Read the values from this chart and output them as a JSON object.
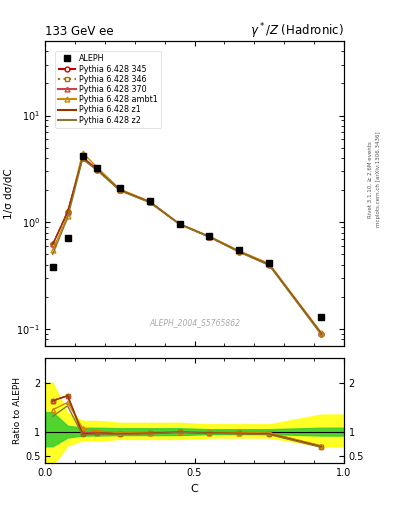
{
  "title_left": "133 GeV ee",
  "title_right": "γ*/Z (Hadronic)",
  "ylabel_main": "1/σ dσ/dC",
  "ylabel_ratio": "Ratio to ALEPH",
  "xlabel": "C",
  "watermark": "ALEPH_2004_S5765862",
  "right_label_top": "Rivet 3.1.10, ≥ 2.6M events",
  "right_label_bot": "mcplots.cern.ch [arXiv:1306.3436]",
  "aleph_x": [
    0.025,
    0.075,
    0.125,
    0.175,
    0.25,
    0.35,
    0.45,
    0.55,
    0.65,
    0.75,
    0.925
  ],
  "aleph_y": [
    0.38,
    0.72,
    4.2,
    3.2,
    2.1,
    1.6,
    0.97,
    0.75,
    0.55,
    0.42,
    0.13
  ],
  "py_x": [
    0.025,
    0.075,
    0.125,
    0.175,
    0.25,
    0.35,
    0.45,
    0.55,
    0.65,
    0.75,
    0.925
  ],
  "py345_y": [
    0.62,
    1.25,
    4.0,
    3.1,
    2.0,
    1.55,
    0.96,
    0.73,
    0.53,
    0.4,
    0.09
  ],
  "py346_y": [
    0.62,
    1.25,
    4.0,
    3.1,
    2.0,
    1.55,
    0.96,
    0.73,
    0.53,
    0.4,
    0.09
  ],
  "py370_y": [
    0.62,
    1.25,
    4.1,
    3.15,
    2.02,
    1.56,
    0.965,
    0.735,
    0.535,
    0.405,
    0.091
  ],
  "pyambt1_y": [
    0.55,
    1.15,
    4.5,
    3.25,
    2.05,
    1.57,
    0.97,
    0.74,
    0.54,
    0.41,
    0.092
  ],
  "pyz1_y": [
    0.62,
    1.25,
    4.0,
    3.1,
    2.0,
    1.55,
    0.96,
    0.73,
    0.53,
    0.4,
    0.09
  ],
  "pyz2_y": [
    0.5,
    1.1,
    3.9,
    3.05,
    1.98,
    1.53,
    0.955,
    0.725,
    0.525,
    0.395,
    0.088
  ],
  "color_345": "#cc0000",
  "color_346": "#997700",
  "color_370": "#cc4444",
  "color_ambt1": "#cc8800",
  "color_z1": "#993300",
  "color_z2": "#887733",
  "ylim_main": [
    0.07,
    50
  ],
  "ylim_ratio": [
    0.35,
    2.5
  ],
  "ratio_yticks": [
    0.5,
    1.0,
    2.0
  ],
  "green_band": {
    "x": [
      0.0,
      0.025,
      0.075,
      0.125,
      0.175,
      0.25,
      0.35,
      0.45,
      0.55,
      0.65,
      0.75,
      0.925,
      1.0
    ],
    "lo": [
      0.7,
      0.7,
      0.88,
      0.92,
      0.92,
      0.93,
      0.93,
      0.93,
      0.95,
      0.95,
      0.95,
      0.92,
      0.92
    ],
    "hi": [
      1.4,
      1.4,
      1.12,
      1.08,
      1.08,
      1.07,
      1.07,
      1.07,
      1.05,
      1.05,
      1.05,
      1.08,
      1.08
    ]
  },
  "yellow_band": {
    "x": [
      0.0,
      0.025,
      0.075,
      0.125,
      0.175,
      0.25,
      0.35,
      0.45,
      0.55,
      0.65,
      0.75,
      0.925,
      1.0
    ],
    "lo": [
      0.3,
      0.3,
      0.72,
      0.82,
      0.82,
      0.85,
      0.85,
      0.85,
      0.88,
      0.88,
      0.88,
      0.7,
      0.7
    ],
    "hi": [
      2.0,
      2.0,
      1.38,
      1.22,
      1.22,
      1.18,
      1.18,
      1.18,
      1.15,
      1.15,
      1.15,
      1.35,
      1.35
    ]
  }
}
